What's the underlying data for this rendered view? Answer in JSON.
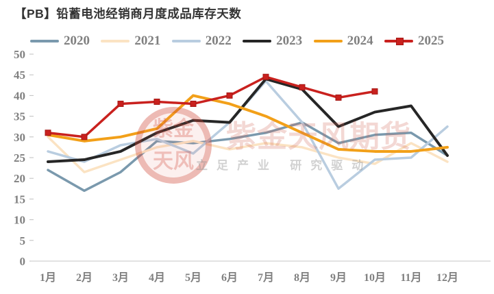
{
  "title": "【PB】铅蓄电池经销商月度成品库存天数",
  "watermark": {
    "seal_line1": "紫金",
    "seal_line2": "天风",
    "brand": "紫金天风期货",
    "slogan": "立足产业 研究驱动"
  },
  "chart_data": {
    "type": "line",
    "title": "【PB】铅蓄电池经销商月度成品库存天数",
    "categories": [
      "1月",
      "2月",
      "3月",
      "4月",
      "5月",
      "6月",
      "7月",
      "8月",
      "9月",
      "10月",
      "11月",
      "12月"
    ],
    "series": [
      {
        "name": "2020",
        "color": "#7A99AD",
        "values": [
          22,
          17,
          21.5,
          29,
          28.5,
          29.5,
          31,
          33.5,
          28.5,
          30.5,
          31,
          25.5
        ]
      },
      {
        "name": "2021",
        "color": "#FBE3C3",
        "values": [
          30,
          21.5,
          24.5,
          27.5,
          29,
          27,
          28.5,
          27.5,
          25,
          23.5,
          28.5,
          24
        ]
      },
      {
        "name": "2022",
        "color": "#B9CDE0",
        "values": [
          26.5,
          24,
          28,
          29.5,
          26,
          33.5,
          43.5,
          33.5,
          17.5,
          24.5,
          25,
          32.5
        ]
      },
      {
        "name": "2023",
        "color": "#262626",
        "values": [
          24,
          24.5,
          26.5,
          31,
          34,
          33.5,
          44,
          41.5,
          32.5,
          36,
          37.5,
          25.5
        ]
      },
      {
        "name": "2024",
        "color": "#F2A019",
        "values": [
          30.5,
          29,
          30,
          32,
          40,
          38,
          35,
          31,
          27,
          26.5,
          26.5,
          27.5
        ]
      },
      {
        "name": "2025",
        "color": "#C9211E",
        "marker": "square",
        "values": [
          31,
          30,
          38,
          38.5,
          38,
          40,
          44.5,
          42,
          39.5,
          41
        ]
      }
    ],
    "ylim": [
      0,
      50
    ],
    "y_ticks": [
      0,
      5,
      10,
      15,
      20,
      25,
      30,
      35,
      40,
      45,
      50
    ],
    "grid": false,
    "legend_position": "top",
    "axis_color": "#808080",
    "axis_line_color": "#D9D9D9"
  }
}
